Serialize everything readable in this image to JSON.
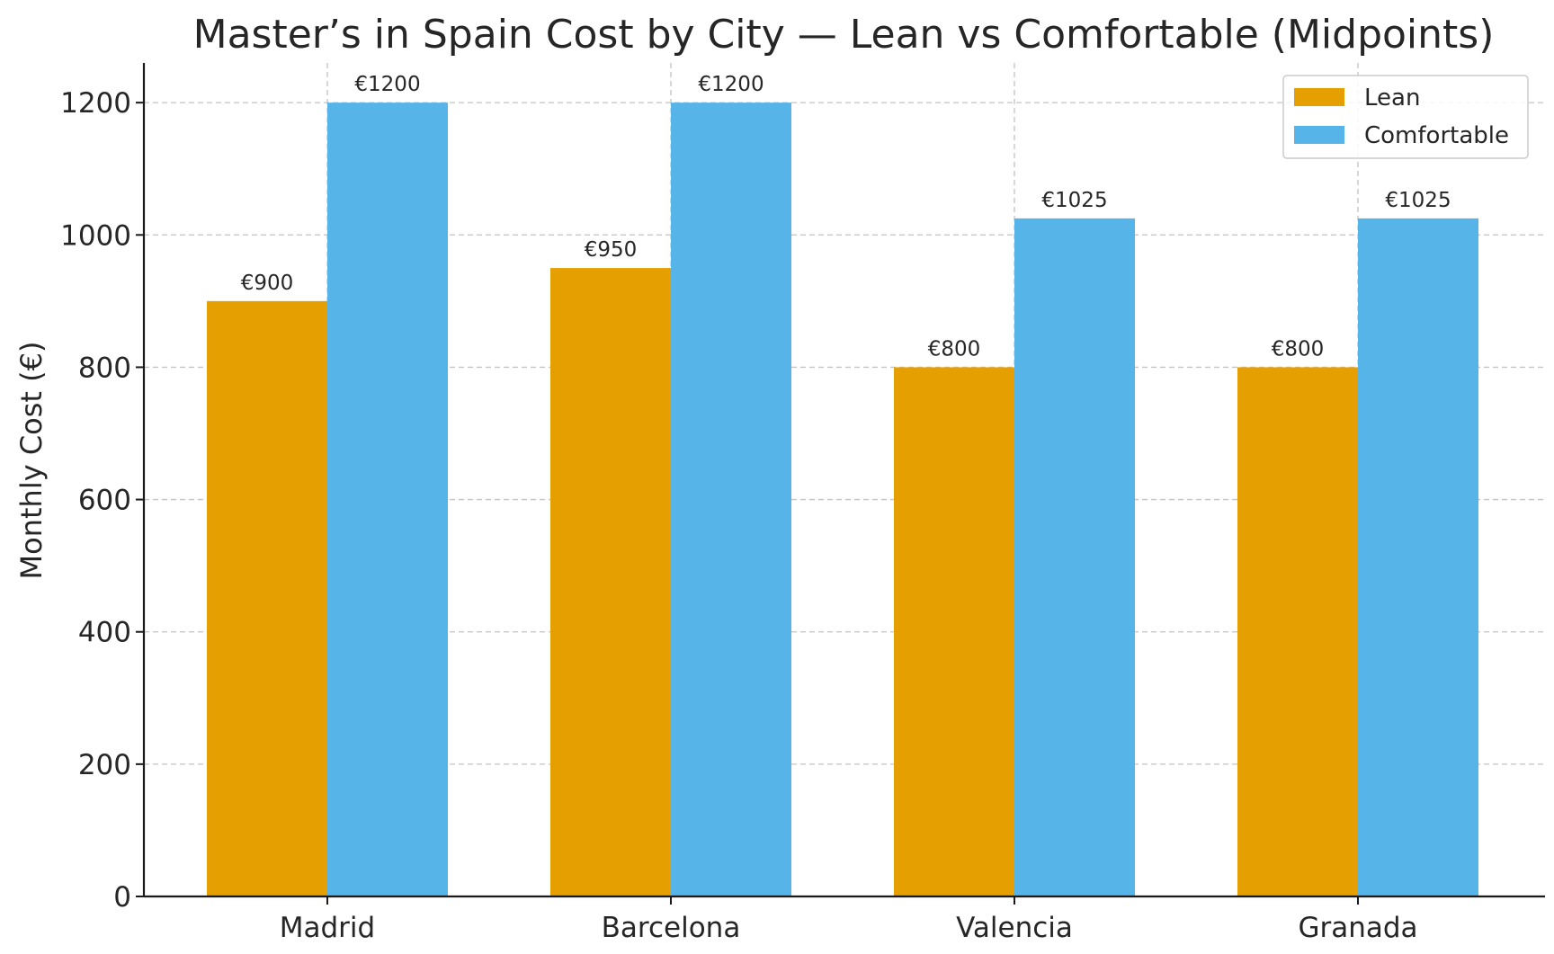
{
  "chart_data": {
    "type": "bar",
    "title": "Master’s in Spain Cost by City — Lean vs Comfortable (Midpoints)",
    "xlabel": "",
    "ylabel": "Monthly Cost (€)",
    "categories": [
      "Madrid",
      "Barcelona",
      "Valencia",
      "Granada"
    ],
    "series": [
      {
        "name": "Lean",
        "color": "#E69F00",
        "values": [
          900,
          950,
          800,
          800
        ],
        "labels": [
          "€900",
          "€950",
          "€800",
          "€800"
        ]
      },
      {
        "name": "Comfortable",
        "color": "#56B4E9",
        "values": [
          1200,
          1200,
          1025,
          1025
        ],
        "labels": [
          "€1200",
          "€1200",
          "€1025",
          "€1025"
        ]
      }
    ],
    "ylim": [
      0,
      1260
    ],
    "yticks": [
      0,
      200,
      400,
      600,
      800,
      1000,
      1200
    ],
    "grid": true,
    "legend_position": "top-right"
  }
}
